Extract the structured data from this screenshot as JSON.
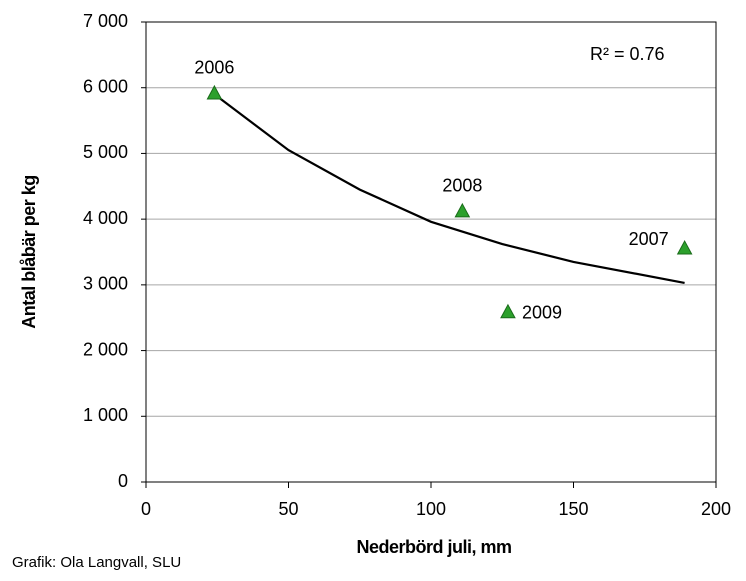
{
  "chart_data": {
    "type": "scatter",
    "xlabel": "Nederbörd juli, mm",
    "ylabel": "Antal blåbär per kg",
    "annotation": "R² = 0.76",
    "source": "Grafik: Ola Langvall, SLU",
    "xlim": [
      0,
      200
    ],
    "xticks": [
      0,
      50,
      100,
      150,
      200
    ],
    "ylim": [
      0,
      7000
    ],
    "yticks": [
      0,
      {
        "value": 1000,
        "label": "1 000"
      },
      {
        "value": 2000,
        "label": "2 000"
      },
      {
        "value": 3000,
        "label": "3 000"
      },
      {
        "value": 4000,
        "label": "4 000"
      },
      {
        "value": 5000,
        "label": "5 000"
      },
      {
        "value": 6000,
        "label": "6 000"
      },
      {
        "value": 7000,
        "label": "7 000"
      }
    ],
    "grid": true,
    "series": [
      {
        "color": "#2ca02c",
        "x": [
          24,
          189,
          111,
          127
        ],
        "values": [
          5920,
          3560,
          4125,
          2590
        ],
        "labels": [
          "2006",
          "2007",
          "2008",
          "2009"
        ]
      }
    ],
    "trendline": {
      "color": "#000000",
      "x": [
        24,
        50,
        75,
        100,
        125,
        150,
        189
      ],
      "values": [
        5900,
        5050,
        4450,
        3960,
        3620,
        3350,
        3030
      ]
    }
  }
}
